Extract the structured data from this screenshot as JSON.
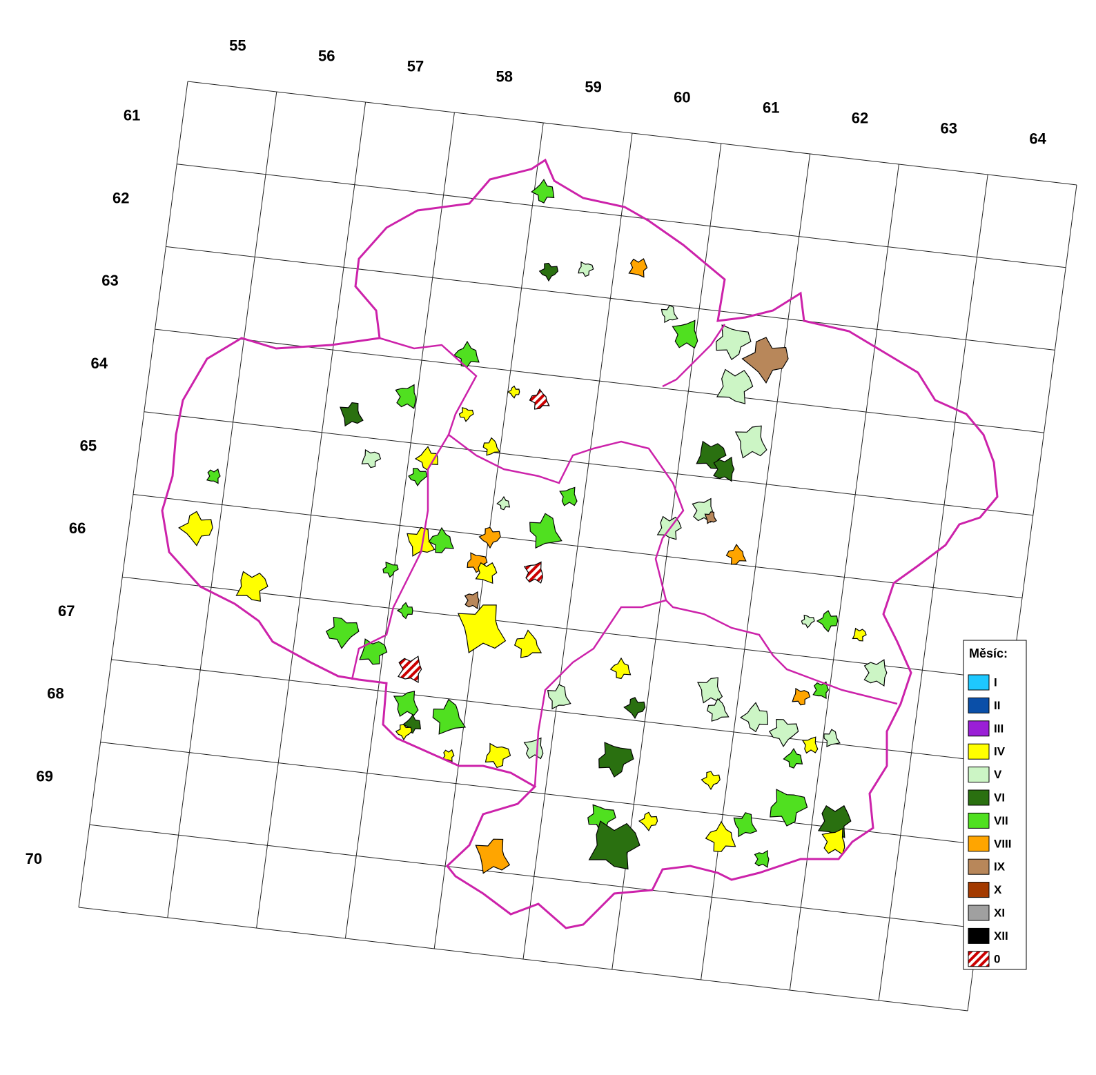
{
  "map": {
    "columns": [
      "55",
      "56",
      "57",
      "58",
      "59",
      "60",
      "61",
      "62",
      "63",
      "64"
    ],
    "rows": [
      "61",
      "62",
      "63",
      "64",
      "65",
      "66",
      "67",
      "68",
      "69",
      "70"
    ],
    "legend": {
      "title": "Měsíc:",
      "items": [
        {
          "label": "I",
          "color": "#1ec8ff"
        },
        {
          "label": "II",
          "color": "#0a4fa8"
        },
        {
          "label": "III",
          "color": "#9a1fd6"
        },
        {
          "label": "IV",
          "color": "#ffff00"
        },
        {
          "label": "V",
          "color": "#ccf5c5"
        },
        {
          "label": "VI",
          "color": "#2a7010"
        },
        {
          "label": "VII",
          "color": "#50e020"
        },
        {
          "label": "VIII",
          "color": "#ffa500"
        },
        {
          "label": "IX",
          "color": "#b8875a"
        },
        {
          "label": "X",
          "color": "#a33a00"
        },
        {
          "label": "XI",
          "color": "#a0a0a0"
        },
        {
          "label": "XII",
          "color": "#000000"
        },
        {
          "label": "0",
          "color": "#cc0000",
          "hatched": true
        }
      ]
    }
  }
}
